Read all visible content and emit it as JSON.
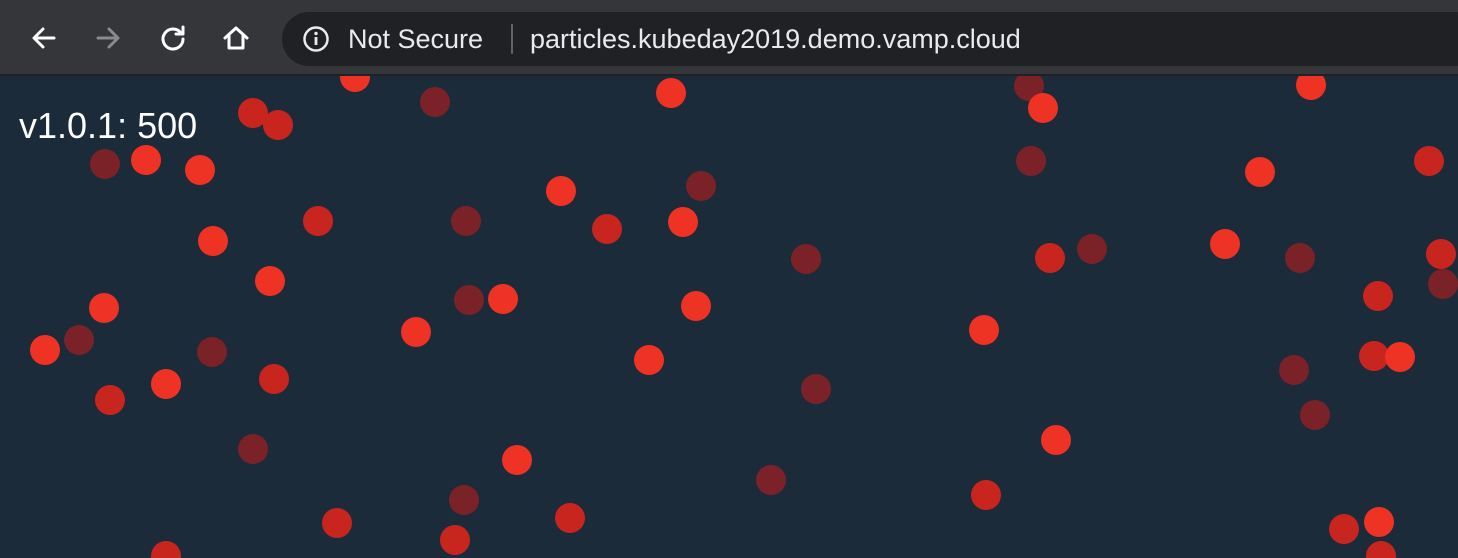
{
  "browser": {
    "security_label": "Not Secure",
    "url": "particles.kubeday2019.demo.vamp.cloud",
    "icons": {
      "back": "back-arrow-icon",
      "forward": "forward-arrow-icon",
      "reload": "reload-icon",
      "home": "home-icon",
      "info": "info-icon"
    }
  },
  "page": {
    "version_label": "v1.0.1: 500"
  },
  "colors": {
    "toolbar": "#35363a",
    "omnibox": "#202124",
    "page_background": "#1b2b3a",
    "particle_bright": "#ee3224",
    "particle_mid": "#c8251f",
    "particle_dark": "#7a2227"
  }
}
